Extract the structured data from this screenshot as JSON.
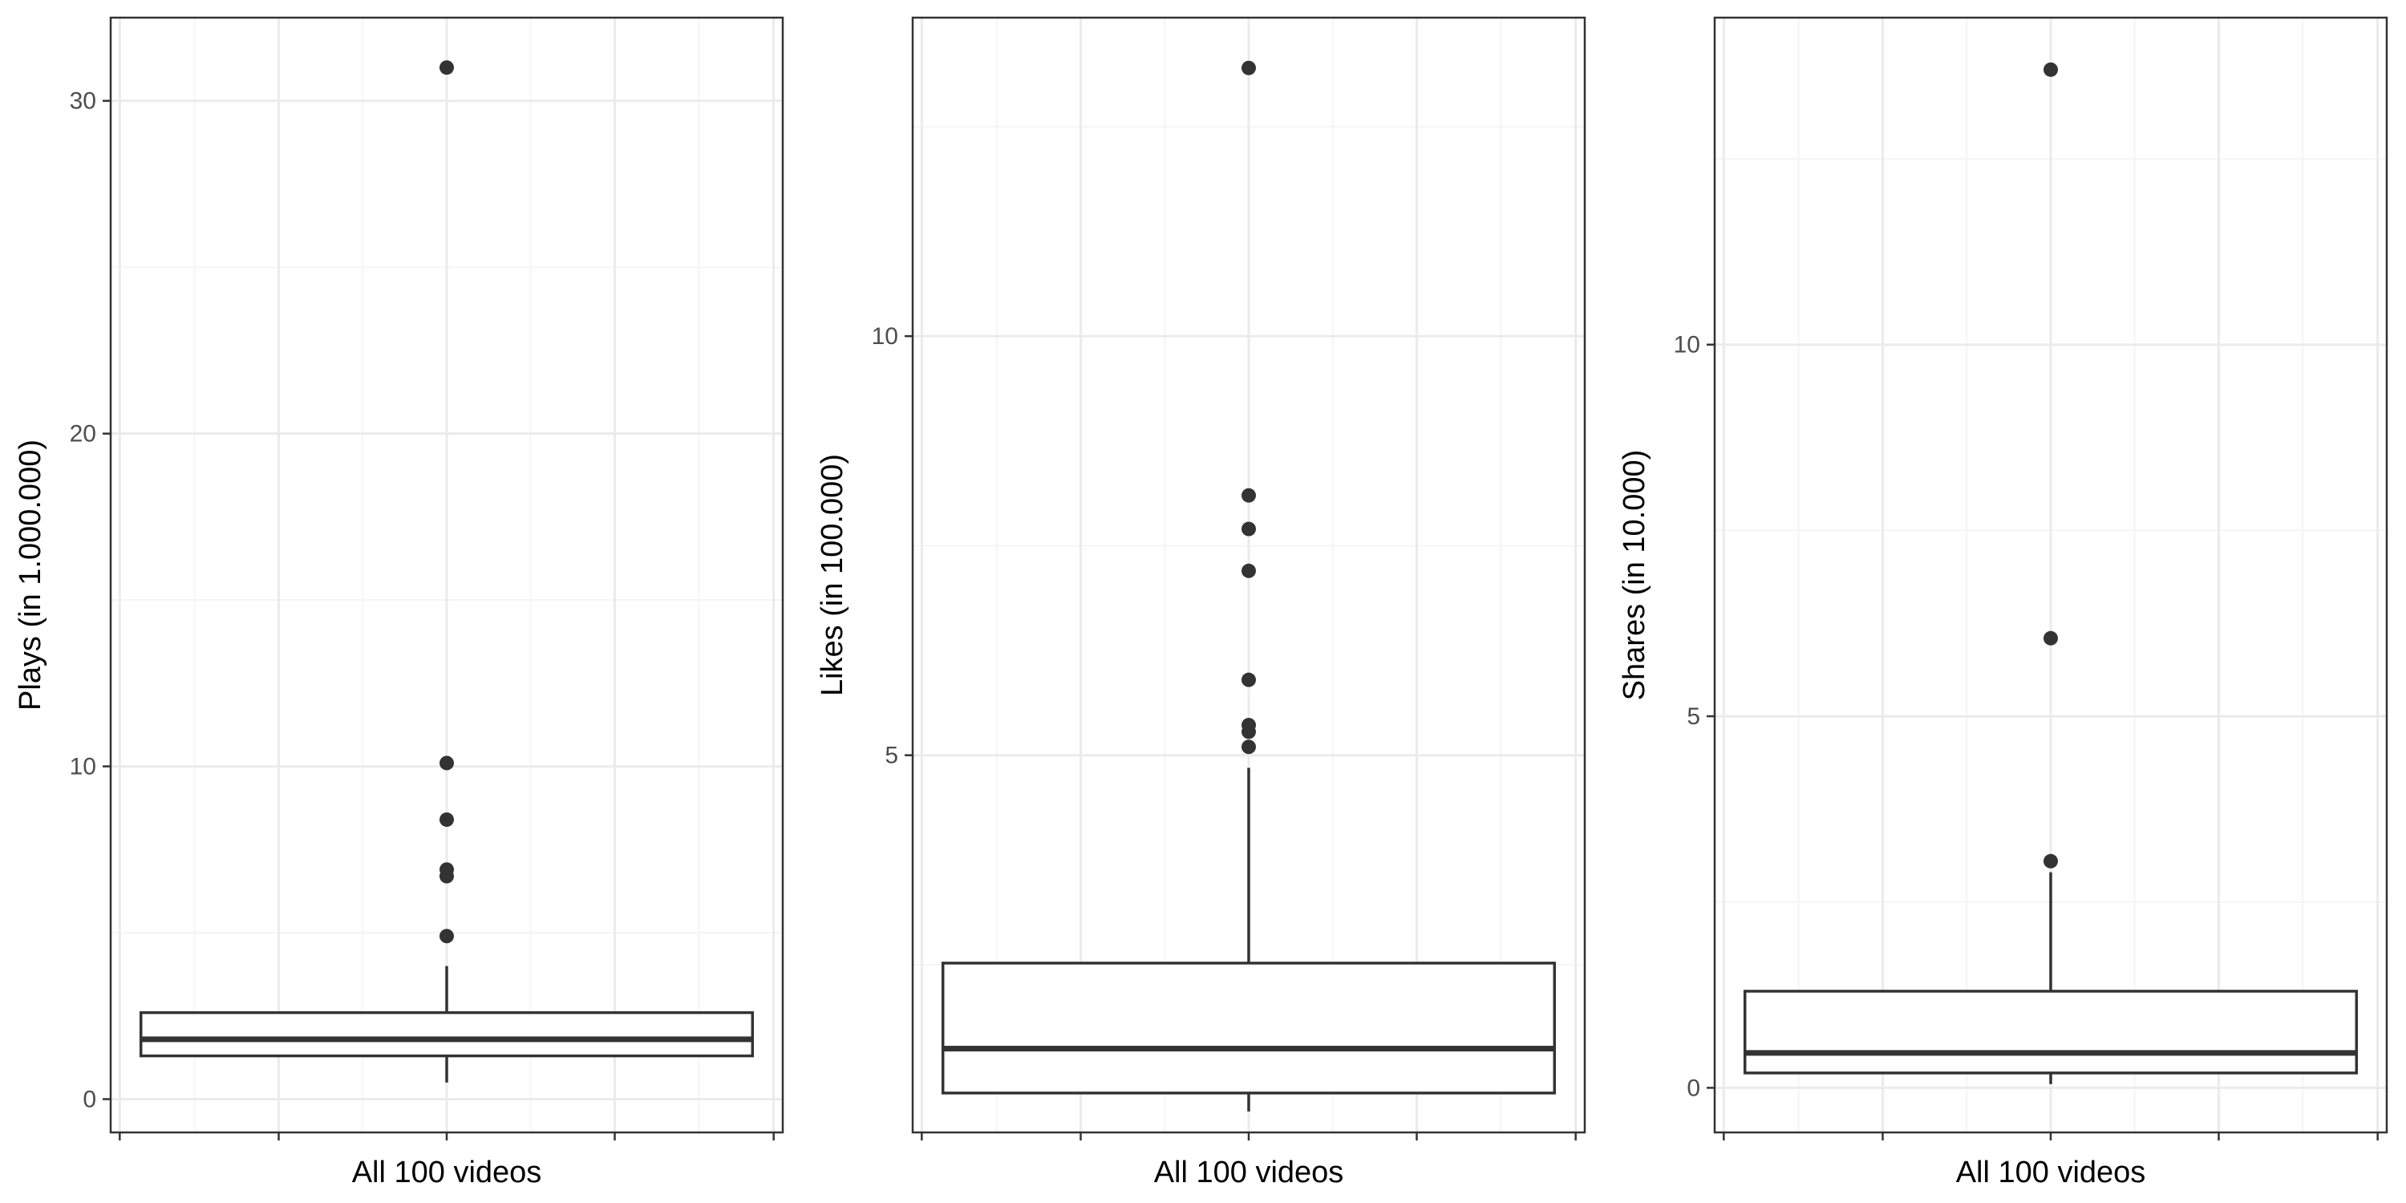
{
  "chart_data": [
    {
      "type": "boxplot",
      "category": "All 100 videos",
      "xlabel": "All 100 videos",
      "ylabel": "Plays (in 1.000.000)",
      "ylim": [
        -1,
        32.5
      ],
      "yticks": [
        0,
        10,
        20,
        30
      ],
      "ytick_labels": [
        "0",
        "10",
        "20",
        "30"
      ],
      "box": {
        "whisker_low": 0.5,
        "q1": 1.3,
        "median": 1.8,
        "q3": 2.6,
        "whisker_high": 4.0
      },
      "outliers": [
        4.9,
        6.7,
        6.9,
        8.4,
        10.1,
        31.0
      ],
      "grid": true
    },
    {
      "type": "boxplot",
      "category": "All 100 videos",
      "xlabel": "All 100 videos",
      "ylabel": "Likes (in 100.000)",
      "ylim": [
        0.5,
        13.8
      ],
      "yticks": [
        5,
        10
      ],
      "ytick_labels": [
        "5",
        "10"
      ],
      "box": {
        "whisker_low": 0.75,
        "q1": 0.97,
        "median": 1.5,
        "q3": 2.52,
        "whisker_high": 4.85
      },
      "outliers": [
        5.1,
        5.28,
        5.36,
        5.9,
        7.2,
        7.7,
        8.1,
        13.2
      ],
      "grid": true
    },
    {
      "type": "boxplot",
      "category": "All 100 videos",
      "xlabel": "All 100 videos",
      "ylabel": "Shares (in 10.000)",
      "ylim": [
        -0.6,
        14.4
      ],
      "yticks": [
        0,
        5,
        10
      ],
      "ytick_labels": [
        "0",
        "5",
        "10"
      ],
      "box": {
        "whisker_low": 0.05,
        "q1": 0.2,
        "median": 0.47,
        "q3": 1.3,
        "whisker_high": 2.9
      },
      "outliers": [
        3.05,
        6.05,
        13.7
      ],
      "grid": true
    }
  ],
  "colors": {
    "panel_border": "#333333",
    "grid_major": "#ebebeb",
    "grid_minor": "#f5f5f5",
    "box_line": "#333333",
    "outlier": "#333333"
  }
}
